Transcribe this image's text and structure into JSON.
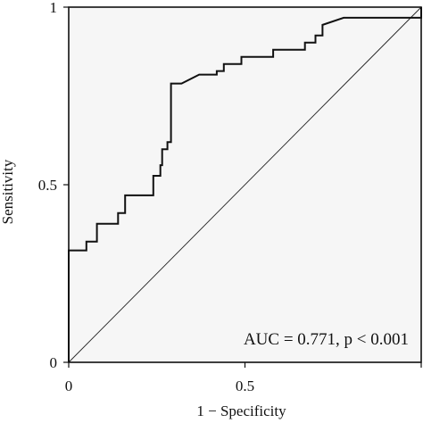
{
  "chart_data": {
    "type": "line",
    "xlabel": "1 − Specificity",
    "ylabel": "Sensitivity",
    "xlim": [
      0,
      1
    ],
    "ylim": [
      0,
      1
    ],
    "x_ticks": [
      0,
      0.5,
      1
    ],
    "x_tick_labels": [
      "0",
      "0.5",
      ""
    ],
    "y_ticks": [
      0,
      0.5,
      1
    ],
    "y_tick_labels": [
      "0",
      "0.5",
      "1"
    ],
    "grid": false,
    "annotation": "AUC = 0.771, p < 0.001",
    "series": [
      {
        "kind": "roc-curve",
        "points": [
          [
            0.0,
            0.0
          ],
          [
            0.0,
            0.31
          ],
          [
            0.0,
            0.315
          ],
          [
            0.05,
            0.315
          ],
          [
            0.05,
            0.34
          ],
          [
            0.08,
            0.34
          ],
          [
            0.08,
            0.39
          ],
          [
            0.14,
            0.39
          ],
          [
            0.14,
            0.42
          ],
          [
            0.16,
            0.42
          ],
          [
            0.16,
            0.47
          ],
          [
            0.24,
            0.47
          ],
          [
            0.24,
            0.525
          ],
          [
            0.26,
            0.525
          ],
          [
            0.26,
            0.555
          ],
          [
            0.265,
            0.555
          ],
          [
            0.265,
            0.6
          ],
          [
            0.28,
            0.6
          ],
          [
            0.28,
            0.62
          ],
          [
            0.29,
            0.62
          ],
          [
            0.29,
            0.785
          ],
          [
            0.32,
            0.785
          ],
          [
            0.37,
            0.81
          ],
          [
            0.42,
            0.81
          ],
          [
            0.42,
            0.82
          ],
          [
            0.44,
            0.82
          ],
          [
            0.44,
            0.84
          ],
          [
            0.49,
            0.84
          ],
          [
            0.49,
            0.86
          ],
          [
            0.58,
            0.86
          ],
          [
            0.58,
            0.88
          ],
          [
            0.67,
            0.88
          ],
          [
            0.67,
            0.9
          ],
          [
            0.7,
            0.9
          ],
          [
            0.7,
            0.92
          ],
          [
            0.72,
            0.92
          ],
          [
            0.72,
            0.95
          ],
          [
            0.78,
            0.97
          ],
          [
            1.0,
            0.97
          ],
          [
            1.0,
            1.0
          ]
        ]
      },
      {
        "kind": "reference-diagonal",
        "points": [
          [
            0,
            0
          ],
          [
            1,
            1
          ]
        ]
      }
    ],
    "colors": {
      "curve": "#111111",
      "plot_background": "#f6f6f6",
      "diagonal": "#222222"
    }
  }
}
